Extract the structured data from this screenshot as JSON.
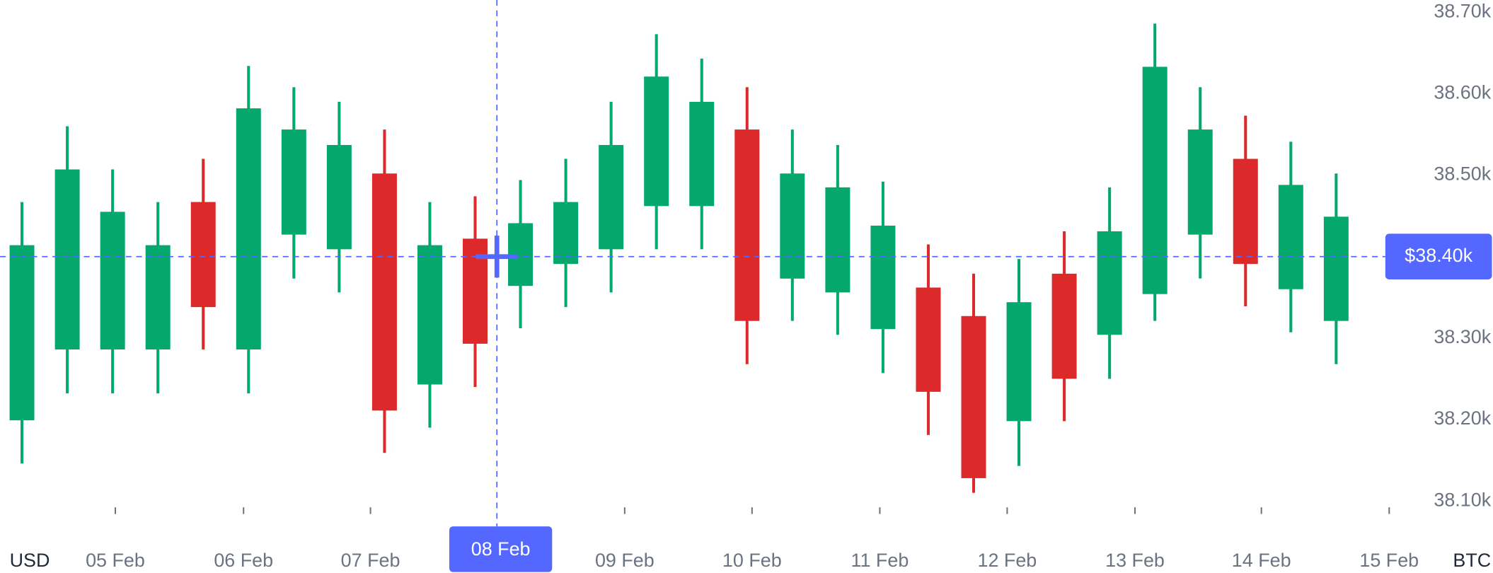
{
  "chart_data": {
    "type": "candlestick",
    "x": [
      0,
      1,
      2,
      3,
      4,
      5,
      6,
      7,
      8,
      9,
      10,
      11,
      12,
      13,
      14,
      15,
      16,
      17,
      18,
      19,
      20,
      21,
      22,
      23,
      24,
      25,
      26,
      27,
      28,
      29
    ],
    "open": [
      38199,
      38286,
      38286,
      38286,
      38467,
      38286,
      38427,
      38409,
      38502,
      38243,
      38422,
      38364,
      38391,
      38409,
      38462,
      38462,
      38556,
      38373,
      38356,
      38311,
      38362,
      38327,
      38198,
      38379,
      38304,
      38354,
      38427,
      38520,
      38360,
      38321
    ],
    "high": [
      38467,
      38560,
      38507,
      38467,
      38520,
      38634,
      38608,
      38590,
      38556,
      38467,
      38474,
      38494,
      38520,
      38590,
      38673,
      38643,
      38608,
      38556,
      38537,
      38492,
      38415,
      38379,
      38397,
      38431,
      38485,
      38686,
      38608,
      38573,
      38541,
      38502
    ],
    "low": [
      38146,
      38232,
      38232,
      38232,
      38286,
      38232,
      38373,
      38356,
      38159,
      38190,
      38240,
      38312,
      38338,
      38356,
      38409,
      38409,
      38268,
      38321,
      38304,
      38257,
      38181,
      38110,
      38143,
      38198,
      38250,
      38321,
      38373,
      38339,
      38307,
      38268
    ],
    "close": [
      38414,
      38507,
      38455,
      38414,
      38338,
      38582,
      38556,
      38537,
      38211,
      38414,
      38293,
      38441,
      38467,
      38537,
      38621,
      38590,
      38321,
      38502,
      38485,
      38438,
      38234,
      38128,
      38344,
      38250,
      38431,
      38633,
      38556,
      38391,
      38488,
      38449
    ],
    "up_color": "#04a76c",
    "down_color": "#dc2a2a",
    "xlim": [
      -0.483,
      30.19
    ],
    "xticks": [
      {
        "value": 2.06,
        "label": "05 Feb"
      },
      {
        "value": 4.89,
        "label": "06 Feb"
      },
      {
        "value": 7.69,
        "label": "07 Feb"
      },
      {
        "value": 13.3,
        "label": "09 Feb"
      },
      {
        "value": 16.11,
        "label": "10 Feb"
      },
      {
        "value": 18.93,
        "label": "11 Feb"
      },
      {
        "value": 21.74,
        "label": "12 Feb"
      },
      {
        "value": 24.56,
        "label": "13 Feb"
      },
      {
        "value": 27.35,
        "label": "14 Feb"
      },
      {
        "value": 30.17,
        "label": "15 Feb"
      }
    ],
    "ylim": [
      38077,
      38715
    ],
    "yticks": [
      {
        "value": 38100,
        "label": "38.10k"
      },
      {
        "value": 38200,
        "label": "38.20k"
      },
      {
        "value": 38300,
        "label": "38.30k"
      },
      {
        "value": 38400,
        "label": "38.40k"
      },
      {
        "value": 38500,
        "label": "38.50k"
      },
      {
        "value": 38600,
        "label": "38.60k"
      },
      {
        "value": 38700,
        "label": "38.70k"
      }
    ],
    "crosshair": {
      "x": {
        "value": 10.48,
        "label": "08 Feb"
      },
      "y": {
        "value": 38400,
        "label": "$38.40k"
      },
      "color": "#5468ff"
    },
    "quote_currency": "USD",
    "base_currency": "BTC"
  }
}
